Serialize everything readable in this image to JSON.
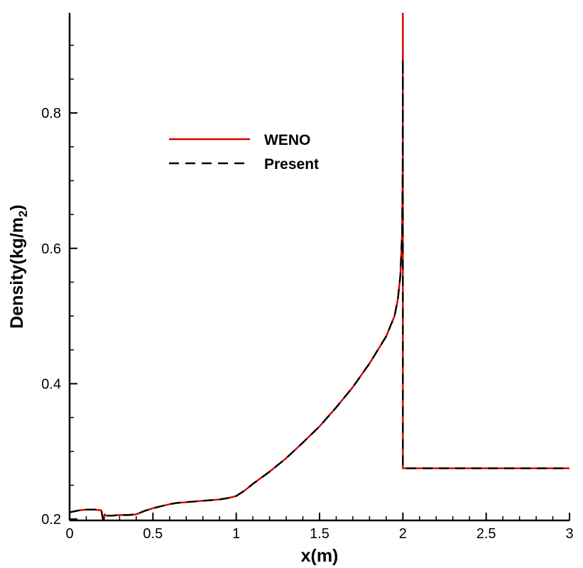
{
  "chart_data": {
    "type": "line",
    "title": "",
    "xlabel": "x(m)",
    "ylabel": "Density(kg/m",
    "ylabel_sub": "2",
    "ylabel_close": ")",
    "xlim": [
      0,
      3
    ],
    "ylim": [
      0.198,
      0.948
    ],
    "x_ticks": [
      0,
      0.5,
      1,
      1.5,
      2,
      2.5,
      3
    ],
    "x_tick_labels": [
      "0",
      "0.5",
      "1",
      "1.5",
      "2",
      "2.5",
      "3"
    ],
    "y_ticks": [
      0.2,
      0.4,
      0.6,
      0.8
    ],
    "y_tick_labels": [
      "0.2",
      "0.4",
      "0.6",
      "0.8"
    ],
    "grid": false,
    "legend_position": "upper-left",
    "series": [
      {
        "name": "WENO",
        "color": "#d40000",
        "style": "solid",
        "x": [
          0,
          0.02,
          0.06,
          0.1,
          0.15,
          0.19,
          0.2,
          0.205,
          0.21,
          0.215,
          0.22,
          0.25,
          0.3,
          0.35,
          0.4,
          0.45,
          0.5,
          0.55,
          0.6,
          0.65,
          0.7,
          0.75,
          0.8,
          0.85,
          0.9,
          0.95,
          1.0,
          1.05,
          1.1,
          1.2,
          1.3,
          1.4,
          1.5,
          1.6,
          1.7,
          1.8,
          1.9,
          1.95,
          1.97,
          1.985,
          1.995,
          1.999,
          2.0,
          2.0,
          2.003,
          2.01,
          2.5,
          3.0
        ],
        "y": [
          0.21,
          0.211,
          0.213,
          0.214,
          0.214,
          0.213,
          0.2,
          0.199,
          0.207,
          0.206,
          0.205,
          0.205,
          0.206,
          0.206,
          0.207,
          0.212,
          0.216,
          0.219,
          0.222,
          0.224,
          0.225,
          0.226,
          0.227,
          0.228,
          0.229,
          0.231,
          0.234,
          0.242,
          0.252,
          0.27,
          0.29,
          0.313,
          0.337,
          0.365,
          0.395,
          0.43,
          0.47,
          0.5,
          0.525,
          0.56,
          0.62,
          0.72,
          0.948,
          0.275,
          0.275,
          0.275,
          0.275,
          0.275
        ]
      },
      {
        "name": "Present",
        "color": "#000000",
        "style": "dashed",
        "x": [
          0,
          0.02,
          0.06,
          0.1,
          0.15,
          0.19,
          0.2,
          0.205,
          0.21,
          0.215,
          0.22,
          0.25,
          0.3,
          0.35,
          0.4,
          0.45,
          0.5,
          0.55,
          0.6,
          0.65,
          0.7,
          0.75,
          0.8,
          0.85,
          0.9,
          0.95,
          1.0,
          1.05,
          1.1,
          1.2,
          1.3,
          1.4,
          1.5,
          1.6,
          1.7,
          1.8,
          1.9,
          1.95,
          1.97,
          1.985,
          1.995,
          1.999,
          2.0,
          2.0,
          2.003,
          2.01,
          2.5,
          3.0
        ],
        "y": [
          0.21,
          0.211,
          0.213,
          0.214,
          0.214,
          0.213,
          0.201,
          0.2,
          0.207,
          0.206,
          0.205,
          0.205,
          0.206,
          0.206,
          0.207,
          0.212,
          0.216,
          0.219,
          0.222,
          0.224,
          0.225,
          0.226,
          0.227,
          0.228,
          0.229,
          0.231,
          0.234,
          0.242,
          0.252,
          0.27,
          0.29,
          0.313,
          0.337,
          0.365,
          0.395,
          0.43,
          0.47,
          0.5,
          0.525,
          0.56,
          0.62,
          0.72,
          0.88,
          0.275,
          0.275,
          0.275,
          0.275,
          0.275
        ]
      }
    ]
  }
}
